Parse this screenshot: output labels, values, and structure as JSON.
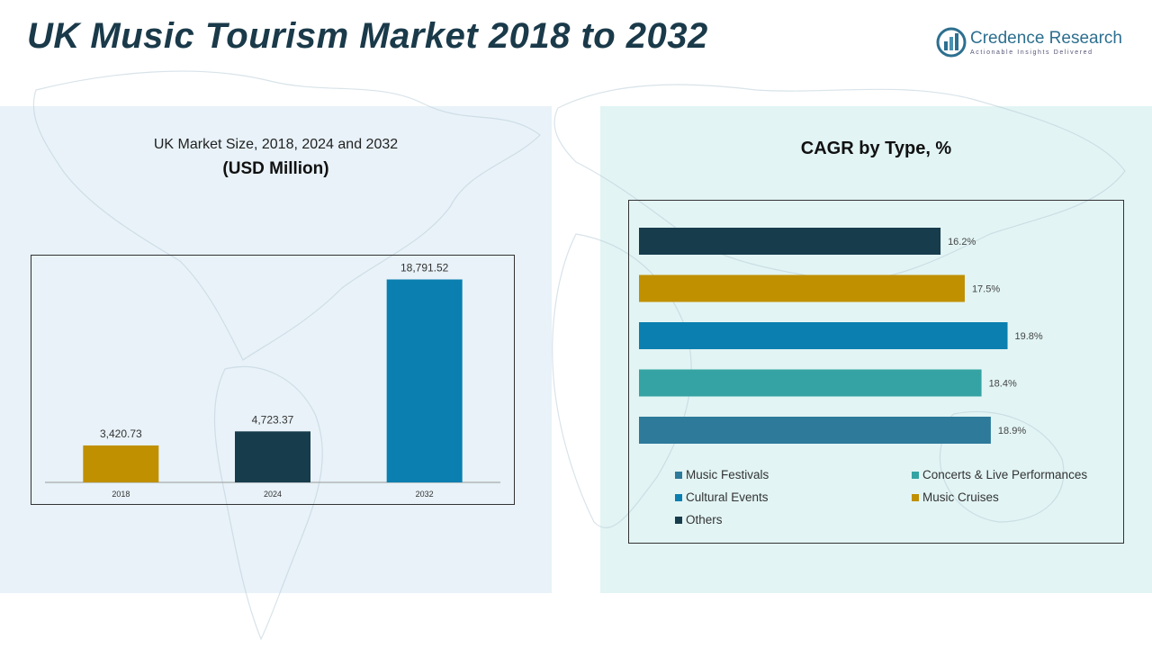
{
  "title": "UK Music Tourism Market 2018 to 2032",
  "logo": {
    "name": "Credence Research",
    "tagline": "Actionable Insights Delivered"
  },
  "chart_data": [
    {
      "type": "bar",
      "title": "UK Market Size, 2018, 2024 and 2032",
      "unit_label": "(USD Million)",
      "categories": [
        "2018",
        "2024",
        "2032"
      ],
      "values": [
        3420.73,
        4723.37,
        18791.52
      ],
      "value_labels": [
        "3,420.73",
        "4,723.37",
        "18,791.52"
      ],
      "colors": [
        "#c09000",
        "#173c4c",
        "#0a7fb0"
      ],
      "ylim": [
        0,
        20000
      ]
    },
    {
      "type": "bar",
      "orientation": "horizontal",
      "title": "CAGR by Type, %",
      "categories": [
        "Others",
        "Music Cruises",
        "Cultural Events",
        "Concerts & Live Performances",
        "Music Festivals"
      ],
      "values": [
        16.2,
        17.5,
        19.8,
        18.4,
        18.9
      ],
      "value_labels": [
        "16.2%",
        "17.5%",
        "19.8%",
        "18.4%",
        "18.9%"
      ],
      "colors": [
        "#173c4c",
        "#c09000",
        "#0a7fb0",
        "#35a3a3",
        "#2d7a9a"
      ],
      "xlim": [
        0,
        20.5
      ],
      "legend": [
        {
          "label": "Music Festivals",
          "color": "#2d7a9a"
        },
        {
          "label": "Concerts & Live Performances",
          "color": "#35a3a3"
        },
        {
          "label": "Cultural Events",
          "color": "#0a7fb0"
        },
        {
          "label": "Music Cruises",
          "color": "#c09000"
        },
        {
          "label": "Others",
          "color": "#173c4c"
        }
      ]
    }
  ]
}
